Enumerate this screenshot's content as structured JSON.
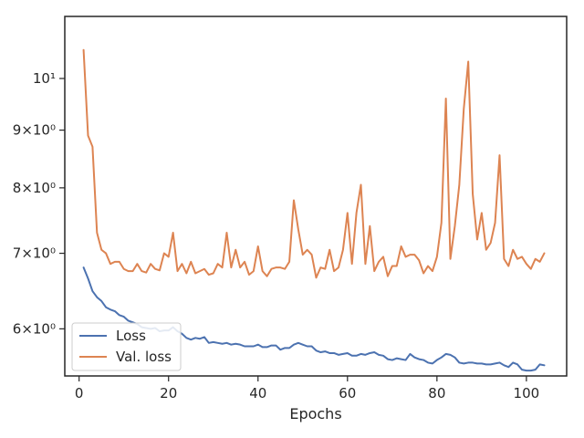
{
  "chart_data": {
    "type": "line",
    "title": "",
    "xlabel": "Epochs",
    "ylabel": "",
    "xlim": [
      -3.2,
      109
    ],
    "ylim": [
      5.45,
      11.35
    ],
    "yscale": "log",
    "grid": false,
    "legend_position": "lower-left",
    "x_ticks": [
      0,
      20,
      40,
      60,
      80,
      100
    ],
    "x_tick_labels": [
      "0",
      "20",
      "40",
      "60",
      "80",
      "100"
    ],
    "y_ticks": [
      6,
      7,
      8,
      9,
      10
    ],
    "y_tick_labels": [
      "6×10⁰",
      "7×10⁰",
      "8×10⁰",
      "9×10⁰",
      "10¹"
    ],
    "series": [
      {
        "name": "Loss",
        "color": "#4c72b0",
        "x_start": 1,
        "values": [
          6.8,
          6.65,
          6.48,
          6.4,
          6.35,
          6.27,
          6.24,
          6.22,
          6.17,
          6.15,
          6.1,
          6.08,
          6.06,
          6.02,
          6.01,
          6.0,
          6.01,
          5.97,
          5.98,
          5.98,
          6.02,
          5.97,
          5.94,
          5.89,
          5.87,
          5.89,
          5.88,
          5.9,
          5.83,
          5.84,
          5.83,
          5.82,
          5.83,
          5.81,
          5.82,
          5.81,
          5.79,
          5.79,
          5.79,
          5.81,
          5.78,
          5.78,
          5.8,
          5.8,
          5.75,
          5.77,
          5.77,
          5.81,
          5.83,
          5.81,
          5.79,
          5.79,
          5.74,
          5.72,
          5.73,
          5.71,
          5.71,
          5.69,
          5.7,
          5.71,
          5.68,
          5.68,
          5.7,
          5.69,
          5.71,
          5.72,
          5.69,
          5.68,
          5.64,
          5.63,
          5.65,
          5.64,
          5.63,
          5.7,
          5.66,
          5.64,
          5.63,
          5.6,
          5.59,
          5.63,
          5.66,
          5.7,
          5.69,
          5.66,
          5.6,
          5.59,
          5.6,
          5.6,
          5.59,
          5.59,
          5.58,
          5.58,
          5.59,
          5.6,
          5.57,
          5.55,
          5.6,
          5.58,
          5.52,
          5.51,
          5.51,
          5.52,
          5.58,
          5.57
        ]
      },
      {
        "name": "Val. loss",
        "color": "#dd8452",
        "x_start": 1,
        "values": [
          10.6,
          8.9,
          8.7,
          7.3,
          7.05,
          7.0,
          6.85,
          6.88,
          6.88,
          6.78,
          6.75,
          6.75,
          6.85,
          6.75,
          6.73,
          6.85,
          6.78,
          6.76,
          7.0,
          6.95,
          7.3,
          6.75,
          6.85,
          6.72,
          6.88,
          6.72,
          6.75,
          6.78,
          6.7,
          6.72,
          6.85,
          6.8,
          7.3,
          6.8,
          7.05,
          6.8,
          6.88,
          6.7,
          6.75,
          7.1,
          6.75,
          6.68,
          6.78,
          6.8,
          6.8,
          6.78,
          6.88,
          7.8,
          7.35,
          6.98,
          7.05,
          6.98,
          6.66,
          6.8,
          6.78,
          7.05,
          6.75,
          6.8,
          7.05,
          7.6,
          6.85,
          7.6,
          8.05,
          6.85,
          7.4,
          6.75,
          6.88,
          6.95,
          6.68,
          6.82,
          6.82,
          7.1,
          6.95,
          6.98,
          6.98,
          6.9,
          6.72,
          6.82,
          6.75,
          6.95,
          7.45,
          9.6,
          6.92,
          7.4,
          8.05,
          9.4,
          10.35,
          7.9,
          7.2,
          7.6,
          7.05,
          7.15,
          7.45,
          8.55,
          6.92,
          6.82,
          7.05,
          6.92,
          6.95,
          6.85,
          6.78,
          6.92,
          6.88,
          7.0
        ]
      }
    ]
  }
}
